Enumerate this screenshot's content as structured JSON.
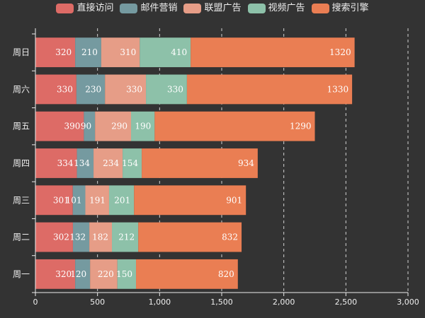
{
  "chart_data": {
    "type": "bar",
    "orientation": "horizontal",
    "stacked": true,
    "categories": [
      "周一",
      "周二",
      "周三",
      "周四",
      "周五",
      "周六",
      "周日"
    ],
    "series": [
      {
        "name": "直接访问",
        "color": "#dd6b66",
        "values": [
          320,
          302,
          301,
          334,
          390,
          330,
          320
        ]
      },
      {
        "name": "邮件营销",
        "color": "#759aa0",
        "values": [
          120,
          132,
          101,
          134,
          90,
          230,
          210
        ]
      },
      {
        "name": "联盟广告",
        "color": "#e69d87",
        "values": [
          220,
          182,
          191,
          234,
          290,
          330,
          310
        ]
      },
      {
        "name": "视频广告",
        "color": "#8dc1a9",
        "values": [
          150,
          212,
          201,
          154,
          190,
          330,
          410
        ]
      },
      {
        "name": "搜索引擎",
        "color": "#ea7e53",
        "values": [
          820,
          832,
          901,
          934,
          1290,
          1330,
          1320
        ]
      }
    ],
    "xlim": [
      0,
      3000
    ],
    "x_ticks": [
      0,
      500,
      1000,
      1500,
      2000,
      2500,
      3000
    ],
    "x_tick_labels": [
      "0",
      "500",
      "1,000",
      "1,500",
      "2,000",
      "2,500",
      "3,000"
    ],
    "grid": "vertical-dashed",
    "legend_position": "top-center",
    "data_labels": "inside"
  },
  "theme": {
    "background": "#333333",
    "axis_color": "#eeeeee",
    "grid_color": "#eeeeee",
    "label_color": "#ffffff"
  }
}
